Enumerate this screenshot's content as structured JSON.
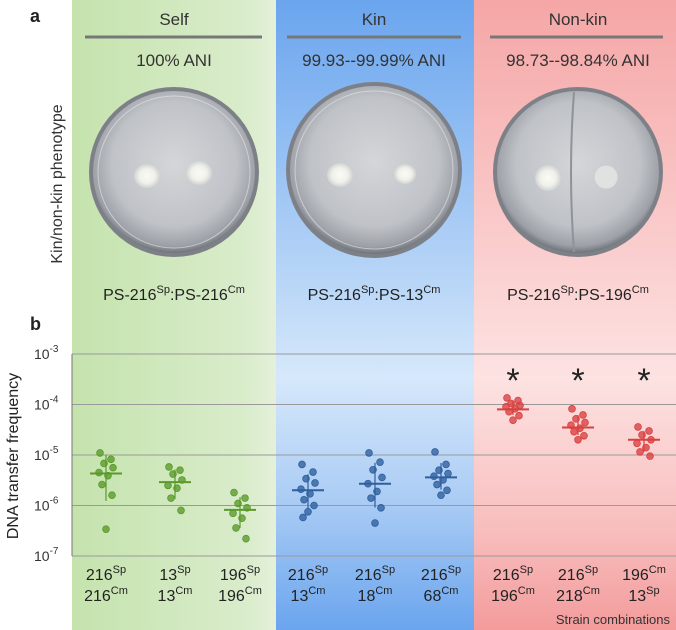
{
  "panels": [
    {
      "letter": "a"
    },
    {
      "letter": "b"
    }
  ],
  "groups": [
    {
      "title": "Self",
      "ani": "100% ANI",
      "color": "#8fc46a",
      "plate_label": {
        "a": "PS-216",
        "a_sup": "Sp",
        "b": "PS-216",
        "b_sup": "Cm"
      }
    },
    {
      "title": "Kin",
      "ani": "99.93--99.99% ANI",
      "color": "#5b9ae6",
      "plate_label": {
        "a": "PS-216",
        "a_sup": "Sp",
        "b": "PS-13",
        "b_sup": "Cm"
      }
    },
    {
      "title": "Non-kin",
      "ani": "98.73--98.84% ANI",
      "color": "#f08b8b",
      "plate_label": {
        "a": "PS-216",
        "a_sup": "Sp",
        "b": "PS-196",
        "b_sup": "Cm"
      }
    }
  ],
  "phenotype_label": "Kin/non-kin phenotype",
  "chart_data": {
    "type": "scatter",
    "ylabel": "DNA transfer frequency",
    "xlabel": "Strain combinations",
    "yscale": "log",
    "ylim": [
      1e-07,
      0.001
    ],
    "yticks": [
      {
        "base": "10",
        "exp": "-3"
      },
      {
        "base": "10",
        "exp": "-4"
      },
      {
        "base": "10",
        "exp": "-5"
      },
      {
        "base": "10",
        "exp": "-6"
      },
      {
        "base": "10",
        "exp": "-7"
      }
    ],
    "grid": true,
    "categories": [
      {
        "group": "Self",
        "l1": "216",
        "s1": "Sp",
        "l2": "216",
        "s2": "Cm",
        "color": "#5a9a2a",
        "mean": 4.3e-06,
        "points": [
          1.1e-05,
          8.2e-06,
          6.8e-06,
          5.6e-06,
          4.5e-06,
          3.9e-06,
          2.6e-06,
          1.6e-06,
          3.4e-07
        ],
        "significant": false
      },
      {
        "group": "Self",
        "l1": "13",
        "s1": "Sp",
        "l2": "13",
        "s2": "Cm",
        "color": "#5a9a2a",
        "mean": 2.9e-06,
        "points": [
          5.8e-06,
          5e-06,
          4.2e-06,
          3.2e-06,
          2.5e-06,
          2.2e-06,
          1.4e-06,
          8e-07
        ],
        "significant": false
      },
      {
        "group": "Self",
        "l1": "196",
        "s1": "Sp",
        "l2": "196",
        "s2": "Cm",
        "color": "#5a9a2a",
        "mean": 8.2e-07,
        "points": [
          1.8e-06,
          1.4e-06,
          1.1e-06,
          9e-07,
          7e-07,
          5.6e-07,
          3.6e-07,
          2.2e-07
        ],
        "significant": false
      },
      {
        "group": "Kin",
        "l1": "216",
        "s1": "Sp",
        "l2": "13",
        "s2": "Cm",
        "color": "#2f5f9e",
        "mean": 2e-06,
        "points": [
          6.5e-06,
          4.6e-06,
          3.4e-06,
          2.8e-06,
          2.1e-06,
          1.7e-06,
          1.3e-06,
          1e-06,
          7.5e-07,
          5.8e-07
        ],
        "significant": false
      },
      {
        "group": "Kin",
        "l1": "216",
        "s1": "Sp",
        "l2": "18",
        "s2": "Cm",
        "color": "#2f5f9e",
        "mean": 2.7e-06,
        "points": [
          1.1e-05,
          7.2e-06,
          5.1e-06,
          3.6e-06,
          2.7e-06,
          1.9e-06,
          1.4e-06,
          9e-07,
          4.5e-07
        ],
        "significant": false
      },
      {
        "group": "Kin",
        "l1": "216",
        "s1": "Sp",
        "l2": "68",
        "s2": "Cm",
        "color": "#2f5f9e",
        "mean": 3.6e-06,
        "points": [
          1.15e-05,
          6.5e-06,
          5e-06,
          4.3e-06,
          3.8e-06,
          3.2e-06,
          2.6e-06,
          2e-06,
          1.6e-06
        ],
        "significant": false
      },
      {
        "group": "Non-kin",
        "l1": "216",
        "s1": "Sp",
        "l2": "196",
        "s2": "Cm",
        "color": "#d94040",
        "mean": 8e-05,
        "points": [
          0.000135,
          0.00012,
          0.000105,
          9.6e-05,
          9e-05,
          8.2e-05,
          7.2e-05,
          6e-05,
          4.9e-05
        ],
        "significant": true
      },
      {
        "group": "Non-kin",
        "l1": "216",
        "s1": "Sp",
        "l2": "218",
        "s2": "Cm",
        "color": "#d94040",
        "mean": 3.5e-05,
        "points": [
          8.2e-05,
          6.2e-05,
          5.2e-05,
          4.4e-05,
          3.9e-05,
          3.4e-05,
          2.9e-05,
          2.4e-05,
          2e-05
        ],
        "significant": true
      },
      {
        "group": "Non-kin",
        "l1": "196",
        "s1": "Cm",
        "l2": "13",
        "s2": "Sp",
        "color": "#d94040",
        "mean": 2e-05,
        "points": [
          3.6e-05,
          3e-05,
          2.5e-05,
          2e-05,
          1.7e-05,
          1.4e-05,
          1.15e-05,
          9.5e-06
        ],
        "significant": true
      }
    ],
    "significance_marker": "*"
  }
}
